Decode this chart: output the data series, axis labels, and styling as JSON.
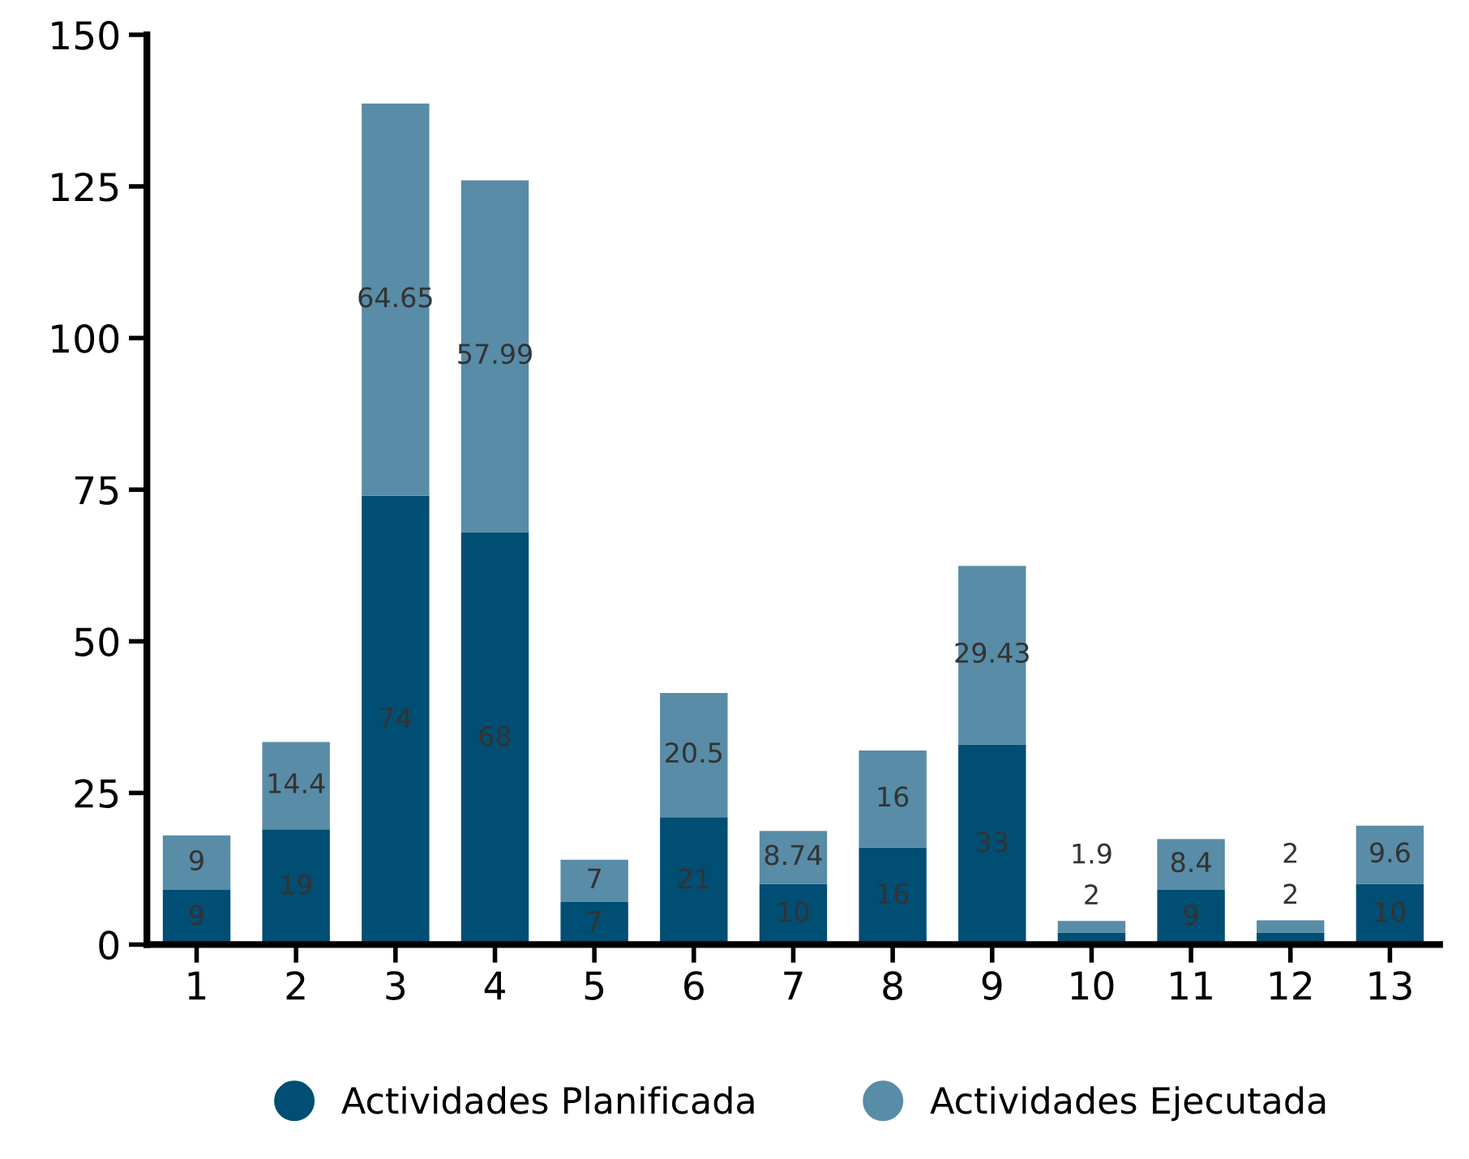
{
  "chart_data": {
    "type": "bar",
    "stacked": true,
    "categories": [
      "1",
      "2",
      "3",
      "4",
      "5",
      "6",
      "7",
      "8",
      "9",
      "10",
      "11",
      "12",
      "13"
    ],
    "series": [
      {
        "name": "Actividades Planificada",
        "color": "#004e73",
        "values": [
          9,
          19,
          74,
          68,
          7,
          21,
          10,
          16,
          33,
          2,
          9,
          2,
          10
        ]
      },
      {
        "name": "Actividades Ejecutada",
        "color": "#588ca7",
        "values": [
          9,
          14.4,
          64.65,
          57.99,
          7,
          20.5,
          8.74,
          16,
          29.43,
          1.9,
          8.4,
          2,
          9.6
        ]
      }
    ],
    "ylim": [
      0,
      150
    ],
    "yticks": [
      0,
      25,
      50,
      75,
      100,
      125,
      150
    ],
    "grid": false,
    "legend": "bottom",
    "data_labels": true
  }
}
